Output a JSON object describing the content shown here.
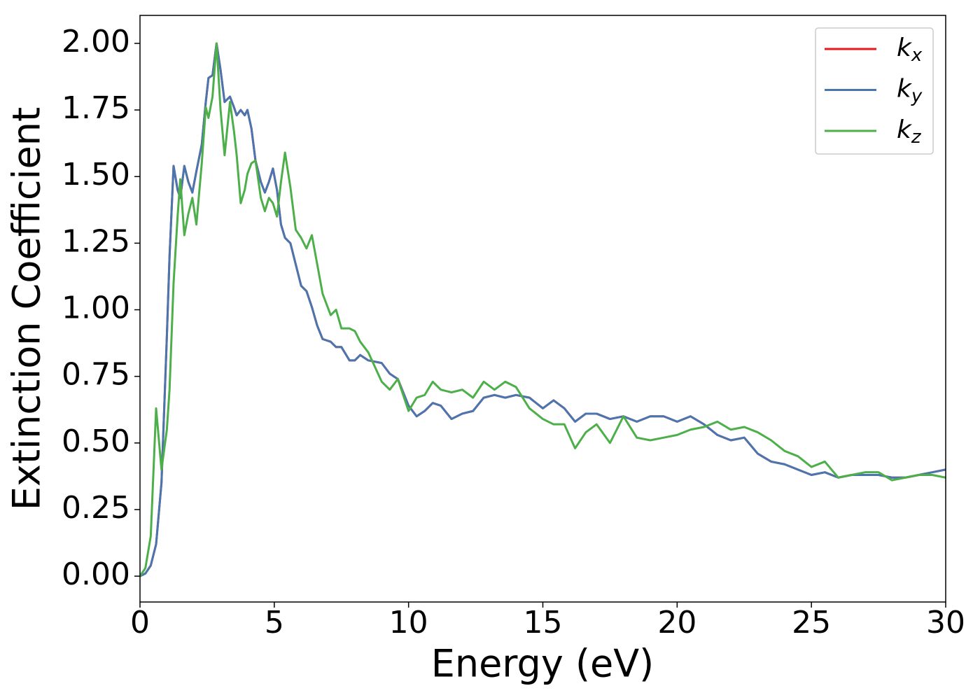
{
  "chart_data": {
    "type": "line",
    "xlabel": "Energy (eV)",
    "ylabel": "Extinction Coefficient",
    "x": [
      0,
      0.2,
      0.4,
      0.6,
      0.8,
      1.0,
      1.1,
      1.25,
      1.4,
      1.5,
      1.65,
      1.8,
      1.95,
      2.1,
      2.3,
      2.45,
      2.55,
      2.7,
      2.85,
      3.0,
      3.15,
      3.35,
      3.5,
      3.6,
      3.75,
      3.9,
      4.0,
      4.15,
      4.3,
      4.5,
      4.65,
      4.8,
      4.95,
      5.1,
      5.25,
      5.4,
      5.6,
      5.8,
      6.0,
      6.2,
      6.4,
      6.6,
      6.8,
      7.1,
      7.3,
      7.5,
      7.8,
      8.0,
      8.2,
      8.5,
      9.0,
      9.3,
      9.6,
      10.0,
      10.3,
      10.6,
      10.9,
      11.2,
      11.6,
      12.0,
      12.4,
      12.8,
      13.2,
      13.6,
      14.0,
      14.5,
      15.0,
      15.4,
      15.8,
      16.2,
      16.6,
      17.0,
      17.5,
      18.0,
      18.5,
      19.0,
      19.5,
      20.0,
      20.5,
      21.0,
      21.5,
      22.0,
      22.5,
      23.0,
      23.5,
      24.0,
      24.5,
      25.0,
      25.5,
      26.0,
      26.5,
      27.0,
      27.5,
      28.0,
      28.5,
      29.0,
      29.5,
      30.0
    ],
    "series": [
      {
        "name": "kx",
        "color": "#e41a1c",
        "values": [
          0,
          0.01,
          0.04,
          0.12,
          0.35,
          0.9,
          1.2,
          1.54,
          1.45,
          1.42,
          1.54,
          1.48,
          1.44,
          1.52,
          1.62,
          1.78,
          1.87,
          1.88,
          2.0,
          1.9,
          1.78,
          1.8,
          1.76,
          1.73,
          1.75,
          1.73,
          1.75,
          1.68,
          1.56,
          1.48,
          1.44,
          1.48,
          1.53,
          1.45,
          1.32,
          1.27,
          1.25,
          1.17,
          1.09,
          1.07,
          1.01,
          0.94,
          0.89,
          0.88,
          0.86,
          0.86,
          0.81,
          0.81,
          0.83,
          0.81,
          0.8,
          0.76,
          0.74,
          0.64,
          0.6,
          0.62,
          0.65,
          0.64,
          0.59,
          0.61,
          0.62,
          0.67,
          0.68,
          0.67,
          0.68,
          0.67,
          0.63,
          0.66,
          0.63,
          0.58,
          0.61,
          0.61,
          0.59,
          0.6,
          0.58,
          0.6,
          0.6,
          0.58,
          0.6,
          0.57,
          0.53,
          0.51,
          0.52,
          0.46,
          0.43,
          0.42,
          0.4,
          0.38,
          0.39,
          0.37,
          0.38,
          0.38,
          0.38,
          0.37,
          0.37,
          0.38,
          0.39,
          0.4
        ]
      },
      {
        "name": "ky",
        "color": "#4a76b0",
        "values": [
          0,
          0.01,
          0.04,
          0.12,
          0.35,
          0.9,
          1.2,
          1.54,
          1.45,
          1.42,
          1.54,
          1.48,
          1.44,
          1.52,
          1.62,
          1.78,
          1.87,
          1.88,
          2.0,
          1.9,
          1.78,
          1.8,
          1.76,
          1.73,
          1.75,
          1.73,
          1.75,
          1.68,
          1.56,
          1.48,
          1.44,
          1.48,
          1.53,
          1.45,
          1.32,
          1.27,
          1.25,
          1.17,
          1.09,
          1.07,
          1.01,
          0.94,
          0.89,
          0.88,
          0.86,
          0.86,
          0.81,
          0.81,
          0.83,
          0.81,
          0.8,
          0.76,
          0.74,
          0.64,
          0.6,
          0.62,
          0.65,
          0.64,
          0.59,
          0.61,
          0.62,
          0.67,
          0.68,
          0.67,
          0.68,
          0.67,
          0.63,
          0.66,
          0.63,
          0.58,
          0.61,
          0.61,
          0.59,
          0.6,
          0.58,
          0.6,
          0.6,
          0.58,
          0.6,
          0.57,
          0.53,
          0.51,
          0.52,
          0.46,
          0.43,
          0.42,
          0.4,
          0.38,
          0.39,
          0.37,
          0.38,
          0.38,
          0.38,
          0.37,
          0.37,
          0.38,
          0.39,
          0.4
        ]
      },
      {
        "name": "kz",
        "color": "#4daf4a",
        "values": [
          0,
          0.03,
          0.15,
          0.63,
          0.4,
          0.55,
          0.7,
          1.1,
          1.35,
          1.49,
          1.28,
          1.36,
          1.42,
          1.32,
          1.55,
          1.76,
          1.72,
          1.8,
          2.0,
          1.75,
          1.58,
          1.78,
          1.67,
          1.58,
          1.4,
          1.45,
          1.51,
          1.55,
          1.56,
          1.42,
          1.37,
          1.42,
          1.4,
          1.35,
          1.48,
          1.59,
          1.46,
          1.3,
          1.27,
          1.23,
          1.28,
          1.17,
          1.06,
          0.98,
          1.0,
          0.93,
          0.93,
          0.92,
          0.88,
          0.84,
          0.73,
          0.7,
          0.74,
          0.62,
          0.67,
          0.68,
          0.73,
          0.7,
          0.69,
          0.7,
          0.67,
          0.73,
          0.7,
          0.73,
          0.71,
          0.63,
          0.59,
          0.57,
          0.57,
          0.48,
          0.54,
          0.57,
          0.5,
          0.6,
          0.52,
          0.51,
          0.52,
          0.53,
          0.55,
          0.56,
          0.58,
          0.55,
          0.56,
          0.54,
          0.51,
          0.47,
          0.45,
          0.41,
          0.43,
          0.37,
          0.38,
          0.39,
          0.39,
          0.36,
          0.37,
          0.38,
          0.38,
          0.37
        ]
      }
    ],
    "xlim": [
      0,
      30
    ],
    "xticks": [
      0,
      5,
      10,
      15,
      20,
      25,
      30
    ],
    "ylim": [
      -0.097,
      2.105
    ],
    "yticks": [
      {
        "value": 0,
        "label": "0.00"
      },
      {
        "value": 0.25,
        "label": "0.25"
      },
      {
        "value": 0.5,
        "label": "0.50"
      },
      {
        "value": 0.75,
        "label": "0.75"
      },
      {
        "value": 1,
        "label": "1.00"
      },
      {
        "value": 1.25,
        "label": "1.25"
      },
      {
        "value": 1.5,
        "label": "1.50"
      },
      {
        "value": 1.75,
        "label": "1.75"
      },
      {
        "value": 2,
        "label": "2.00"
      }
    ],
    "legend": "upper right",
    "grid": false
  }
}
